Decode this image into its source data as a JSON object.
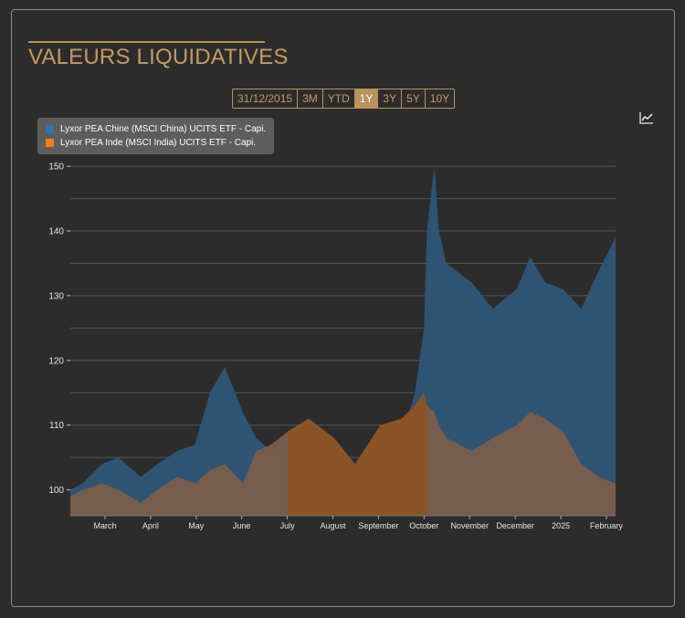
{
  "header": {
    "title": "VALEURS LIQUIDATIVES"
  },
  "range_selector": {
    "buttons": [
      "31/12/2015",
      "3M",
      "YTD",
      "1Y",
      "3Y",
      "5Y",
      "10Y"
    ],
    "active": "1Y"
  },
  "toolbar": {
    "icon": "line-chart-icon"
  },
  "colors": {
    "china": "#2f5577",
    "india": "#7a5e4b",
    "india_emphasis": "#8a5426",
    "china_swatch": "#2f75b5",
    "india_swatch": "#f07f1b",
    "accent": "#c49a63"
  },
  "chart_data": {
    "type": "area",
    "x_ticks": [
      "March",
      "April",
      "May",
      "June",
      "July",
      "August",
      "September",
      "October",
      "November",
      "December",
      "2025",
      "February"
    ],
    "y_ticks": [
      100,
      110,
      120,
      130,
      140,
      150
    ],
    "ylim": [
      96,
      151
    ],
    "grid": true,
    "legend_position": "top-left",
    "series": [
      {
        "name": "Lyxor PEA Chine (MSCI China) UCITS ETF - Capi.",
        "x": [
          "2024-02-06",
          "2024-02-15",
          "2024-02-28",
          "2024-03-10",
          "2024-03-25",
          "2024-04-05",
          "2024-04-18",
          "2024-04-30",
          "2024-05-10",
          "2024-05-20",
          "2024-06-01",
          "2024-06-10",
          "2024-06-20",
          "2024-07-01",
          "2024-07-15",
          "2024-08-01",
          "2024-08-15",
          "2024-09-01",
          "2024-09-15",
          "2024-09-24",
          "2024-09-30",
          "2024-10-02",
          "2024-10-07",
          "2024-10-10",
          "2024-10-15",
          "2024-11-01",
          "2024-11-15",
          "2024-12-01",
          "2024-12-10",
          "2024-12-20",
          "2025-01-01",
          "2025-01-13",
          "2025-01-25",
          "2025-02-05",
          "2025-02-10"
        ],
        "values": [
          100,
          101,
          104,
          105,
          102,
          104,
          106,
          107,
          115,
          119,
          112,
          108,
          106,
          109,
          110,
          107,
          104,
          106,
          108,
          115,
          125,
          140,
          150,
          140,
          135,
          132,
          128,
          131,
          136,
          132,
          131,
          128,
          134,
          139,
          141
        ]
      },
      {
        "name": "Lyxor PEA Inde (MSCI India) UCITS ETF - Capi.",
        "x": [
          "2024-02-06",
          "2024-02-15",
          "2024-02-28",
          "2024-03-10",
          "2024-03-25",
          "2024-04-05",
          "2024-04-18",
          "2024-04-30",
          "2024-05-10",
          "2024-05-20",
          "2024-06-01",
          "2024-06-10",
          "2024-06-20",
          "2024-07-01",
          "2024-07-15",
          "2024-08-01",
          "2024-08-15",
          "2024-09-01",
          "2024-09-15",
          "2024-09-24",
          "2024-09-30",
          "2024-10-02",
          "2024-10-07",
          "2024-10-10",
          "2024-10-15",
          "2024-11-01",
          "2024-11-15",
          "2024-12-01",
          "2024-12-10",
          "2024-12-20",
          "2025-01-01",
          "2025-01-13",
          "2025-01-25",
          "2025-02-05",
          "2025-02-10"
        ],
        "values": [
          99,
          100,
          101,
          100,
          98,
          100,
          102,
          101,
          103,
          104,
          101,
          106,
          107,
          109,
          111,
          108,
          104,
          110,
          111,
          113,
          115,
          113,
          112,
          110,
          108,
          106,
          108,
          110,
          112,
          111,
          109,
          104,
          102,
          101,
          102
        ]
      }
    ]
  }
}
